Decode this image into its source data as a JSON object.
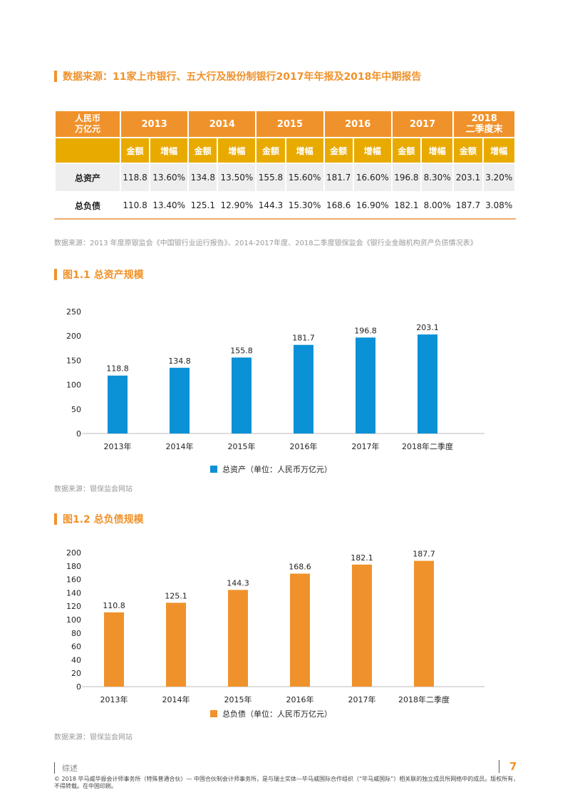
{
  "heading": "数据来源：11家上市银行、五大行及股份制银行2017年年报及2018年中期报告",
  "table": {
    "corner": "人民币\n万亿元",
    "years": [
      "2013",
      "2014",
      "2015",
      "2016",
      "2017",
      "2018\n二季度末"
    ],
    "subheaders": [
      "金额",
      "增幅"
    ],
    "rows": [
      {
        "label": "总资产",
        "values": [
          "118.8",
          "13.60%",
          "134.8",
          "13.50%",
          "155.8",
          "15.60%",
          "181.7",
          "16.60%",
          "196.8",
          "8.30%",
          "203.1",
          "3.20%"
        ]
      },
      {
        "label": "总负债",
        "values": [
          "110.8",
          "13.40%",
          "125.1",
          "12.90%",
          "144.3",
          "15.30%",
          "168.6",
          "16.90%",
          "182.1",
          "8.00%",
          "187.7",
          "3.08%"
        ]
      }
    ]
  },
  "table_source": "数据来源：2013 年度原银监会《中国银行业运行报告》、2014-2017年度、2018二季度银保监会《银行业金融机构资产负债情况表》",
  "chart_data": [
    {
      "type": "bar",
      "title": "图1.1 总资产规模",
      "categories": [
        "2013年",
        "2014年",
        "2015年",
        "2016年",
        "2017年",
        "2018年二季度"
      ],
      "series": [
        {
          "name": "总资产（单位：人民币万亿元）",
          "values": [
            118.8,
            134.8,
            155.8,
            181.7,
            196.8,
            203.1
          ]
        }
      ],
      "ylim": [
        0,
        250
      ],
      "yticks": [
        0,
        50,
        100,
        150,
        200,
        250
      ],
      "color": "#0A91D6",
      "legend": "bottom",
      "source": "数据来源：银保监会网站"
    },
    {
      "type": "bar",
      "title": "图1.2 总负债规模",
      "categories": [
        "2013年",
        "2014年",
        "2015年",
        "2016年",
        "2017年",
        "2018年二季度"
      ],
      "series": [
        {
          "name": "总负债（单位：人民币万亿元）",
          "values": [
            110.8,
            125.1,
            144.3,
            168.6,
            182.1,
            187.7
          ]
        }
      ],
      "ylim": [
        0,
        200
      ],
      "yticks": [
        0,
        20,
        40,
        60,
        80,
        100,
        120,
        140,
        160,
        180,
        200
      ],
      "color": "#F0922B",
      "legend": "bottom",
      "source": "数据来源：银保监会网站"
    }
  ],
  "footer": {
    "section": "综述",
    "page": "7",
    "copyright": "© 2018 毕马威华振会计师事务所（特殊普通合伙）— 中国合伙制会计师事务所，是与瑞士实体—毕马威国际合作组织（“毕马威国际”）相关联的独立成员所网络中的成员。版权所有，不得转载。在中国印刷。"
  }
}
